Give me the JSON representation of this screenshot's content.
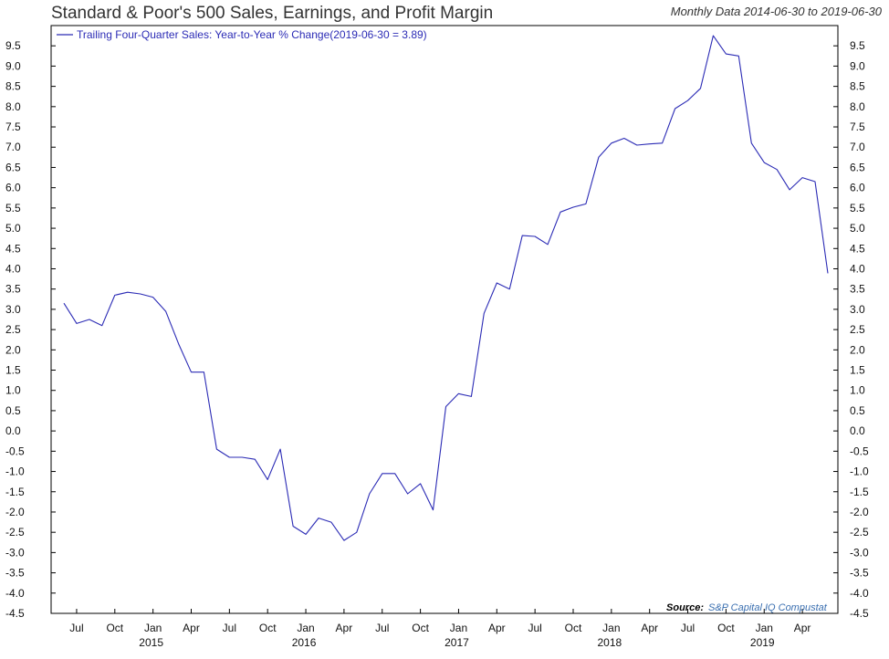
{
  "title": "Standard & Poor's 500 Sales, Earnings, and Profit Margin",
  "subtitle": "Monthly Data 2014-06-30 to 2019-06-30",
  "legend": "Trailing Four-Quarter Sales: Year-to-Year % Change(2019-06-30 = 3.89)",
  "source_label": "Source:",
  "source_value": "S&P Capital IQ Compustat",
  "colors": {
    "line": "#2b2bb5",
    "axis": "#000000"
  },
  "chart_data": {
    "type": "line",
    "title": "Standard & Poor's 500 Sales, Earnings, and Profit Margin",
    "xlabel": "",
    "ylabel": "",
    "ylim": [
      -4.5,
      10.0
    ],
    "y_ticks": [
      "-4.5",
      "-4.0",
      "-3.5",
      "-3.0",
      "-2.5",
      "-2.0",
      "-1.5",
      "-1.0",
      "-0.5",
      "0.0",
      "0.5",
      "1.0",
      "1.5",
      "2.0",
      "2.5",
      "3.0",
      "3.5",
      "4.0",
      "4.5",
      "5.0",
      "5.5",
      "6.0",
      "6.5",
      "7.0",
      "7.5",
      "8.0",
      "8.5",
      "9.0",
      "9.5"
    ],
    "month_ticks": [
      {
        "label": "Jul",
        "date": "2014-07"
      },
      {
        "label": "Oct",
        "date": "2014-10"
      },
      {
        "label": "Jan",
        "date": "2015-01"
      },
      {
        "label": "Apr",
        "date": "2015-04"
      },
      {
        "label": "Jul",
        "date": "2015-07"
      },
      {
        "label": "Oct",
        "date": "2015-10"
      },
      {
        "label": "Jan",
        "date": "2016-01"
      },
      {
        "label": "Apr",
        "date": "2016-04"
      },
      {
        "label": "Jul",
        "date": "2016-07"
      },
      {
        "label": "Oct",
        "date": "2016-10"
      },
      {
        "label": "Jan",
        "date": "2017-01"
      },
      {
        "label": "Apr",
        "date": "2017-04"
      },
      {
        "label": "Jul",
        "date": "2017-07"
      },
      {
        "label": "Oct",
        "date": "2017-10"
      },
      {
        "label": "Jan",
        "date": "2018-01"
      },
      {
        "label": "Apr",
        "date": "2018-04"
      },
      {
        "label": "Jul",
        "date": "2018-07"
      },
      {
        "label": "Oct",
        "date": "2018-10"
      },
      {
        "label": "Jan",
        "date": "2019-01"
      },
      {
        "label": "Apr",
        "date": "2019-04"
      }
    ],
    "year_labels": [
      {
        "label": "2015",
        "date": "2015-01"
      },
      {
        "label": "2016",
        "date": "2016-01"
      },
      {
        "label": "2017",
        "date": "2017-01"
      },
      {
        "label": "2018",
        "date": "2018-01"
      },
      {
        "label": "2019",
        "date": "2019-01"
      }
    ],
    "series": [
      {
        "name": "Trailing Four-Quarter Sales: Year-to-Year % Change",
        "x": [
          "2014-06",
          "2014-07",
          "2014-08",
          "2014-09",
          "2014-10",
          "2014-11",
          "2014-12",
          "2015-01",
          "2015-02",
          "2015-03",
          "2015-04",
          "2015-05",
          "2015-06",
          "2015-07",
          "2015-08",
          "2015-09",
          "2015-10",
          "2015-11",
          "2015-12",
          "2016-01",
          "2016-02",
          "2016-03",
          "2016-04",
          "2016-05",
          "2016-06",
          "2016-07",
          "2016-08",
          "2016-09",
          "2016-10",
          "2016-11",
          "2016-12",
          "2017-01",
          "2017-02",
          "2017-03",
          "2017-04",
          "2017-05",
          "2017-06",
          "2017-07",
          "2017-08",
          "2017-09",
          "2017-10",
          "2017-11",
          "2017-12",
          "2018-01",
          "2018-02",
          "2018-03",
          "2018-04",
          "2018-05",
          "2018-06",
          "2018-07",
          "2018-08",
          "2018-09",
          "2018-10",
          "2018-11",
          "2018-12",
          "2019-01",
          "2019-02",
          "2019-03",
          "2019-04",
          "2019-05",
          "2019-06"
        ],
        "values": [
          3.15,
          2.65,
          2.75,
          2.6,
          3.35,
          3.42,
          3.38,
          3.3,
          2.95,
          2.15,
          1.45,
          1.45,
          -0.45,
          -0.65,
          -0.65,
          -0.7,
          -1.2,
          -0.45,
          -2.35,
          -2.55,
          -2.15,
          -2.25,
          -2.7,
          -2.5,
          -1.55,
          -1.05,
          -1.05,
          -1.55,
          -1.3,
          -1.95,
          0.6,
          0.92,
          0.85,
          2.9,
          3.65,
          3.5,
          4.82,
          4.8,
          4.6,
          5.4,
          5.52,
          5.6,
          6.75,
          7.1,
          7.22,
          7.05,
          7.08,
          7.1,
          7.95,
          8.15,
          8.45,
          9.75,
          9.3,
          9.25,
          7.1,
          6.62,
          6.45,
          5.95,
          6.25,
          6.15,
          3.89
        ]
      }
    ],
    "grid": false,
    "legend_position": "top-left"
  }
}
